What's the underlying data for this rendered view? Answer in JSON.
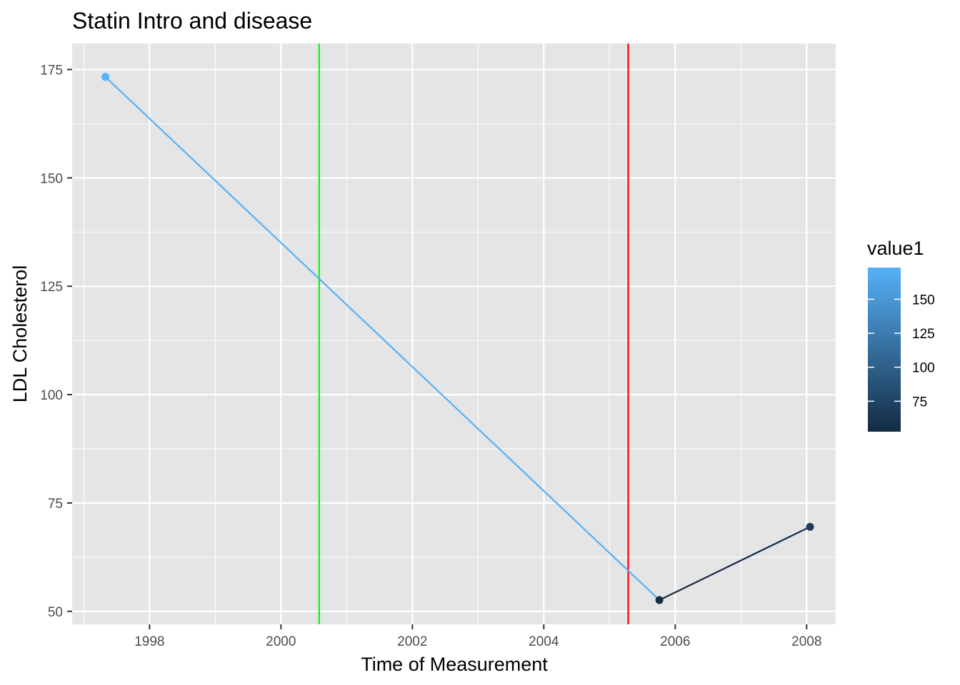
{
  "chart_data": {
    "type": "line",
    "title": "Statin Intro and disease",
    "xlabel": "Time of Measurement",
    "ylabel": "LDL Cholesterol",
    "x_ticks": [
      "1998",
      "2000",
      "2002",
      "2004",
      "2006",
      "2008"
    ],
    "y_ticks": [
      "50",
      "75",
      "100",
      "125",
      "150",
      "175"
    ],
    "xlim": [
      "1996-10-28",
      "2008-06-11"
    ],
    "ylim": [
      47,
      181
    ],
    "series": [
      {
        "points": [
          {
            "x": "1997-05-01",
            "y": 173.3
          },
          {
            "x": "2005-10-05",
            "y": 52.6
          },
          {
            "x": "2008-01-20",
            "y": 69.5
          }
        ]
      }
    ],
    "vlines": [
      {
        "x": "2000-08-01",
        "color": "#00ff00"
      },
      {
        "x": "2005-04-15",
        "color": "#ff0000"
      }
    ],
    "legend": {
      "title": "value1",
      "labels": [
        "150",
        "125",
        "100",
        "75"
      ],
      "values": [
        150,
        125,
        100,
        75
      ],
      "range": [
        52.6,
        173.3
      ],
      "color_low": "#132B43",
      "color_high": "#56B1F7",
      "placement": "right"
    },
    "grid": true,
    "panel_color": "#e5e5e5"
  }
}
